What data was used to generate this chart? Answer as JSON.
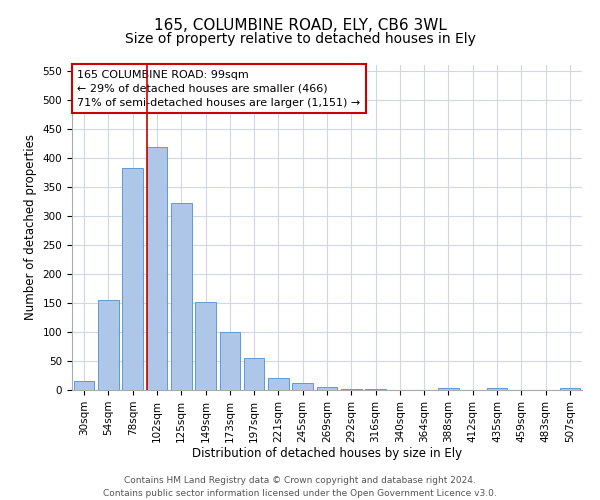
{
  "title1": "165, COLUMBINE ROAD, ELY, CB6 3WL",
  "title2": "Size of property relative to detached houses in Ely",
  "xlabel": "Distribution of detached houses by size in Ely",
  "ylabel": "Number of detached properties",
  "bin_labels": [
    "30sqm",
    "54sqm",
    "78sqm",
    "102sqm",
    "125sqm",
    "149sqm",
    "173sqm",
    "197sqm",
    "221sqm",
    "245sqm",
    "269sqm",
    "292sqm",
    "316sqm",
    "340sqm",
    "364sqm",
    "388sqm",
    "412sqm",
    "435sqm",
    "459sqm",
    "483sqm",
    "507sqm"
  ],
  "bar_heights": [
    15,
    155,
    383,
    418,
    322,
    152,
    100,
    55,
    20,
    12,
    6,
    2,
    2,
    0,
    0,
    4,
    0,
    3,
    0,
    0,
    4
  ],
  "bar_color": "#aec6e8",
  "bar_edge_color": "#5b9bd5",
  "grid_color": "#d0d8e8",
  "annotation_box_color": "#cc0000",
  "subject_line_color": "#cc0000",
  "subject_line_bin_index": 3,
  "annotation_line1": "165 COLUMBINE ROAD: 99sqm",
  "annotation_line2": "← 29% of detached houses are smaller (466)",
  "annotation_line3": "71% of semi-detached houses are larger (1,151) →",
  "ylim": [
    0,
    560
  ],
  "yticks": [
    0,
    50,
    100,
    150,
    200,
    250,
    300,
    350,
    400,
    450,
    500,
    550
  ],
  "footer_line1": "Contains HM Land Registry data © Crown copyright and database right 2024.",
  "footer_line2": "Contains public sector information licensed under the Open Government Licence v3.0.",
  "title_fontsize": 11,
  "subtitle_fontsize": 10,
  "axis_label_fontsize": 8.5,
  "tick_fontsize": 7.5,
  "annotation_fontsize": 8,
  "footer_fontsize": 6.5
}
